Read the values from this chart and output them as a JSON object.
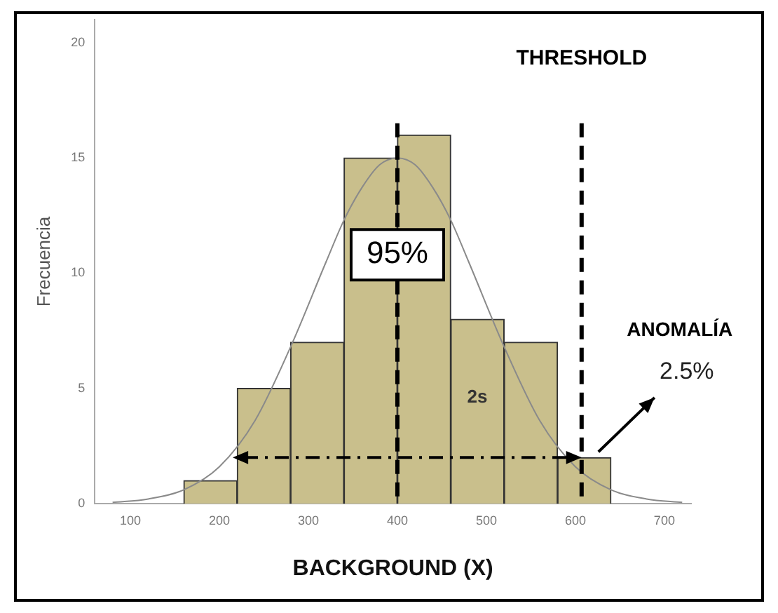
{
  "chart_data": {
    "type": "histogram",
    "xlabel": "BACKGROUND (X)",
    "ylabel": "Frecuencia",
    "bins": [
      160,
      220,
      280,
      340,
      400,
      460,
      520,
      580,
      640
    ],
    "values": [
      1,
      5,
      7,
      15,
      16,
      8,
      7,
      2
    ],
    "color": "#c9bf8c",
    "series": [
      {
        "type": "line",
        "color": "#8a8a8a",
        "x": [
          80,
          120,
          160,
          200,
          240,
          280,
          320,
          340,
          360,
          380,
          400,
          420,
          440,
          460,
          480,
          520,
          560,
          600,
          640,
          680,
          720
        ],
        "values": [
          0.05,
          0.2,
          0.6,
          1.6,
          3.6,
          6.8,
          10.5,
          12.3,
          13.7,
          14.7,
          15,
          14.7,
          13.7,
          12.3,
          10.5,
          6.8,
          3.6,
          1.6,
          0.6,
          0.2,
          0.05
        ]
      }
    ],
    "xlim": [
      60,
      730
    ],
    "xticks": [
      100,
      200,
      300,
      400,
      500,
      600,
      700
    ],
    "ylim": [
      0,
      21
    ],
    "yticks": [
      0,
      5,
      10,
      15,
      20
    ],
    "grid": false,
    "legend": false,
    "marker": "none",
    "ref_lines": [
      {
        "axis": "x",
        "value": 400,
        "label": null,
        "line_style": "dashed"
      },
      {
        "axis": "x",
        "value": 607,
        "label": "THRESHOLD",
        "line_style": "dashed"
      }
    ],
    "annotations": [
      "95%",
      "2s",
      "ANOMALÍA",
      "2.5%"
    ]
  }
}
